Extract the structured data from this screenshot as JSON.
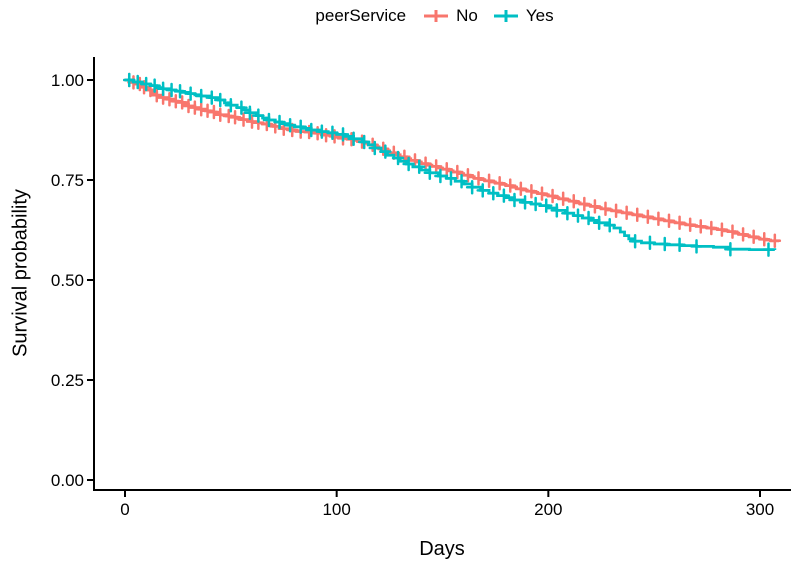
{
  "legend": {
    "title": "peerService",
    "items": [
      {
        "label": "No",
        "color": "#F8766D"
      },
      {
        "label": "Yes",
        "color": "#00BFC4"
      }
    ]
  },
  "axes": {
    "x": {
      "title": "Days",
      "ticks": [
        "0",
        "100",
        "200",
        "300"
      ]
    },
    "y": {
      "title": "Survival probability",
      "ticks": [
        "1.00",
        "0.75",
        "0.50",
        "0.25",
        "0.00"
      ]
    }
  },
  "chart_data": {
    "type": "line",
    "subtype": "kaplan-meier-step-survival-curves",
    "title": "",
    "xlabel": "Days",
    "ylabel": "Survival probability",
    "xlim": [
      0,
      310
    ],
    "ylim": [
      0,
      1
    ],
    "xticks": [
      0,
      100,
      200,
      300
    ],
    "yticks": [
      1.0,
      0.75,
      0.5,
      0.25,
      0.0
    ],
    "grid": false,
    "legend_position": "top",
    "legend_title": "peerService",
    "series": [
      {
        "name": "No",
        "color": "#F8766D",
        "points": [
          [
            0,
            1.0
          ],
          [
            3,
            0.994
          ],
          [
            5,
            0.99
          ],
          [
            8,
            0.982
          ],
          [
            10,
            0.975
          ],
          [
            13,
            0.968
          ],
          [
            15,
            0.962
          ],
          [
            18,
            0.956
          ],
          [
            20,
            0.952
          ],
          [
            23,
            0.947
          ],
          [
            25,
            0.944
          ],
          [
            28,
            0.939
          ],
          [
            30,
            0.935
          ],
          [
            33,
            0.931
          ],
          [
            35,
            0.927
          ],
          [
            38,
            0.923
          ],
          [
            40,
            0.92
          ],
          [
            43,
            0.916
          ],
          [
            45,
            0.913
          ],
          [
            48,
            0.91
          ],
          [
            50,
            0.907
          ],
          [
            53,
            0.904
          ],
          [
            55,
            0.901
          ],
          [
            58,
            0.898
          ],
          [
            60,
            0.896
          ],
          [
            63,
            0.893
          ],
          [
            65,
            0.89
          ],
          [
            68,
            0.887
          ],
          [
            70,
            0.884
          ],
          [
            73,
            0.881
          ],
          [
            75,
            0.878
          ],
          [
            78,
            0.875
          ],
          [
            80,
            0.873
          ],
          [
            83,
            0.871
          ],
          [
            85,
            0.87
          ],
          [
            88,
            0.868
          ],
          [
            90,
            0.867
          ],
          [
            93,
            0.864
          ],
          [
            95,
            0.862
          ],
          [
            98,
            0.859
          ],
          [
            100,
            0.857
          ],
          [
            103,
            0.854
          ],
          [
            105,
            0.852
          ],
          [
            108,
            0.849
          ],
          [
            110,
            0.846
          ],
          [
            113,
            0.842
          ],
          [
            115,
            0.838
          ],
          [
            118,
            0.833
          ],
          [
            120,
            0.828
          ],
          [
            123,
            0.823
          ],
          [
            125,
            0.818
          ],
          [
            128,
            0.813
          ],
          [
            130,
            0.808
          ],
          [
            133,
            0.803
          ],
          [
            135,
            0.799
          ],
          [
            138,
            0.795
          ],
          [
            140,
            0.791
          ],
          [
            143,
            0.787
          ],
          [
            145,
            0.784
          ],
          [
            148,
            0.78
          ],
          [
            150,
            0.777
          ],
          [
            153,
            0.773
          ],
          [
            155,
            0.77
          ],
          [
            158,
            0.766
          ],
          [
            160,
            0.762
          ],
          [
            163,
            0.758
          ],
          [
            165,
            0.754
          ],
          [
            168,
            0.751
          ],
          [
            170,
            0.748
          ],
          [
            173,
            0.745
          ],
          [
            175,
            0.742
          ],
          [
            178,
            0.739
          ],
          [
            180,
            0.736
          ],
          [
            183,
            0.732
          ],
          [
            185,
            0.728
          ],
          [
            188,
            0.725
          ],
          [
            190,
            0.722
          ],
          [
            193,
            0.719
          ],
          [
            195,
            0.716
          ],
          [
            198,
            0.713
          ],
          [
            200,
            0.71
          ],
          [
            203,
            0.706
          ],
          [
            205,
            0.703
          ],
          [
            208,
            0.7
          ],
          [
            210,
            0.697
          ],
          [
            213,
            0.693
          ],
          [
            215,
            0.69
          ],
          [
            218,
            0.687
          ],
          [
            220,
            0.684
          ],
          [
            223,
            0.681
          ],
          [
            225,
            0.678
          ],
          [
            228,
            0.675
          ],
          [
            230,
            0.673
          ],
          [
            233,
            0.67
          ],
          [
            235,
            0.668
          ],
          [
            238,
            0.665
          ],
          [
            240,
            0.663
          ],
          [
            243,
            0.66
          ],
          [
            245,
            0.658
          ],
          [
            248,
            0.655
          ],
          [
            250,
            0.653
          ],
          [
            253,
            0.65
          ],
          [
            255,
            0.648
          ],
          [
            258,
            0.645
          ],
          [
            260,
            0.643
          ],
          [
            263,
            0.64
          ],
          [
            265,
            0.638
          ],
          [
            268,
            0.636
          ],
          [
            270,
            0.634
          ],
          [
            273,
            0.632
          ],
          [
            275,
            0.63
          ],
          [
            278,
            0.628
          ],
          [
            280,
            0.626
          ],
          [
            283,
            0.623
          ],
          [
            285,
            0.621
          ],
          [
            288,
            0.617
          ],
          [
            290,
            0.614
          ],
          [
            293,
            0.611
          ],
          [
            295,
            0.608
          ],
          [
            298,
            0.605
          ],
          [
            300,
            0.602
          ],
          [
            303,
            0.6
          ],
          [
            305,
            0.598
          ],
          [
            309,
            0.595
          ]
        ],
        "censor_days": [
          2,
          4,
          7,
          9,
          12,
          15,
          18,
          21,
          24,
          27,
          30,
          33,
          36,
          39,
          42,
          45,
          49,
          52,
          56,
          60,
          63,
          67,
          71,
          75,
          79,
          83,
          87,
          91,
          95,
          99,
          103,
          107,
          112,
          117,
          122,
          127,
          132,
          137,
          142,
          147,
          152,
          157,
          162,
          167,
          172,
          177,
          182,
          187,
          192,
          197,
          202,
          207,
          212,
          217,
          222,
          227,
          232,
          237,
          242,
          247,
          252,
          257,
          262,
          267,
          272,
          277,
          282,
          287,
          292,
          297,
          302,
          307
        ]
      },
      {
        "name": "Yes",
        "color": "#00BFC4",
        "points": [
          [
            0,
            1.0
          ],
          [
            4,
            0.995
          ],
          [
            8,
            0.99
          ],
          [
            12,
            0.986
          ],
          [
            15,
            0.981
          ],
          [
            18,
            0.978
          ],
          [
            21,
            0.975
          ],
          [
            24,
            0.972
          ],
          [
            27,
            0.969
          ],
          [
            30,
            0.966
          ],
          [
            33,
            0.963
          ],
          [
            36,
            0.96
          ],
          [
            40,
            0.956
          ],
          [
            44,
            0.95
          ],
          [
            47,
            0.943
          ],
          [
            50,
            0.937
          ],
          [
            53,
            0.931
          ],
          [
            56,
            0.925
          ],
          [
            59,
            0.918
          ],
          [
            62,
            0.911
          ],
          [
            65,
            0.905
          ],
          [
            68,
            0.9
          ],
          [
            71,
            0.895
          ],
          [
            74,
            0.891
          ],
          [
            77,
            0.887
          ],
          [
            80,
            0.883
          ],
          [
            84,
            0.879
          ],
          [
            88,
            0.875
          ],
          [
            92,
            0.871
          ],
          [
            96,
            0.868
          ],
          [
            100,
            0.864
          ],
          [
            104,
            0.859
          ],
          [
            108,
            0.853
          ],
          [
            112,
            0.845
          ],
          [
            115,
            0.838
          ],
          [
            118,
            0.83
          ],
          [
            121,
            0.821
          ],
          [
            124,
            0.812
          ],
          [
            127,
            0.805
          ],
          [
            130,
            0.797
          ],
          [
            133,
            0.79
          ],
          [
            136,
            0.783
          ],
          [
            140,
            0.775
          ],
          [
            144,
            0.768
          ],
          [
            148,
            0.76
          ],
          [
            152,
            0.754
          ],
          [
            156,
            0.747
          ],
          [
            160,
            0.74
          ],
          [
            164,
            0.732
          ],
          [
            168,
            0.724
          ],
          [
            172,
            0.717
          ],
          [
            176,
            0.711
          ],
          [
            180,
            0.706
          ],
          [
            184,
            0.7
          ],
          [
            188,
            0.694
          ],
          [
            192,
            0.69
          ],
          [
            196,
            0.686
          ],
          [
            200,
            0.68
          ],
          [
            204,
            0.674
          ],
          [
            208,
            0.667
          ],
          [
            212,
            0.661
          ],
          [
            216,
            0.655
          ],
          [
            220,
            0.649
          ],
          [
            224,
            0.643
          ],
          [
            228,
            0.637
          ],
          [
            231,
            0.63
          ],
          [
            234,
            0.62
          ],
          [
            236,
            0.611
          ],
          [
            238,
            0.603
          ],
          [
            240,
            0.597
          ],
          [
            244,
            0.593
          ],
          [
            250,
            0.59
          ],
          [
            256,
            0.588
          ],
          [
            263,
            0.586
          ],
          [
            270,
            0.584
          ],
          [
            278,
            0.582
          ],
          [
            285,
            0.577
          ],
          [
            295,
            0.576
          ],
          [
            307,
            0.575
          ]
        ],
        "censor_days": [
          2,
          6,
          10,
          14,
          18,
          22,
          26,
          31,
          36,
          41,
          45,
          50,
          55,
          59,
          63,
          68,
          73,
          78,
          83,
          88,
          93,
          98,
          103,
          108,
          113,
          118,
          123,
          129,
          134,
          139,
          144,
          149,
          154,
          159,
          164,
          169,
          174,
          179,
          184,
          189,
          194,
          199,
          204,
          209,
          214,
          219,
          224,
          229,
          241,
          248,
          255,
          262,
          270,
          286,
          304
        ]
      }
    ]
  }
}
